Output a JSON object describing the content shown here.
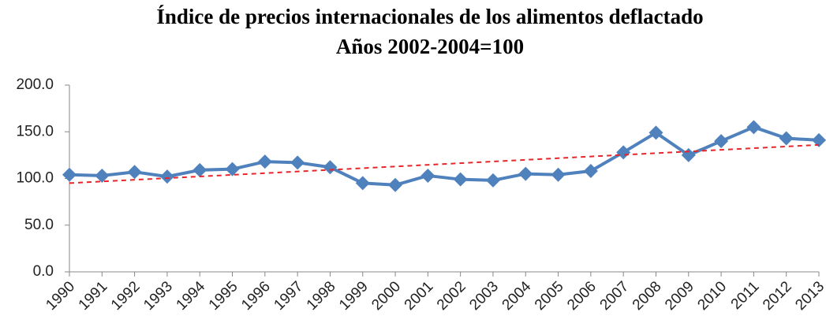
{
  "chart_data": {
    "type": "line",
    "title": "Índice de precios internacionales de los alimentos deflactado",
    "subtitle": "Años 2002-2004=100",
    "categories": [
      "1990",
      "1991",
      "1992",
      "1993",
      "1994",
      "1995",
      "1996",
      "1997",
      "1998",
      "1999",
      "2000",
      "2001",
      "2002",
      "2003",
      "2004",
      "2005",
      "2006",
      "2007",
      "2008",
      "2009",
      "2010",
      "2011",
      "2012",
      "2013"
    ],
    "series": [
      {
        "color": "#4f81bd",
        "values": [
          104,
          103,
          107,
          102,
          109,
          110,
          118,
          117,
          112,
          95,
          93,
          103,
          99,
          98,
          105,
          104,
          108,
          128,
          149,
          125,
          140,
          155,
          143,
          141
        ]
      }
    ],
    "trendline": {
      "color": "#e8262a",
      "values": [
        95,
        136
      ]
    },
    "ylim": [
      0,
      200
    ],
    "yticks": [
      {
        "value": 0,
        "label": "0.0"
      },
      {
        "value": 50,
        "label": "50.0"
      },
      {
        "value": 100,
        "label": "100.0"
      },
      {
        "value": 150,
        "label": "150.0"
      },
      {
        "value": 200,
        "label": "200.0"
      }
    ],
    "grid": false
  }
}
